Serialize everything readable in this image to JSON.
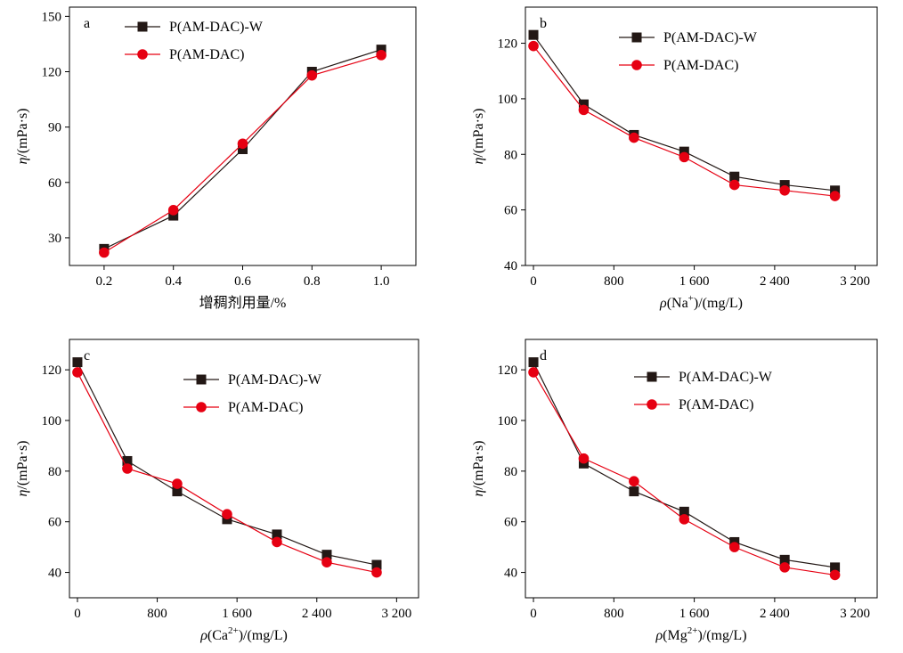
{
  "chart_data": [
    {
      "type": "line",
      "panel_label": "a",
      "xlabel": "增稠剂用量/%",
      "ylabel_symbol": "η",
      "ylabel_unit": "/(mPa·s)",
      "x": [
        0.2,
        0.4,
        0.6,
        0.8,
        1.0
      ],
      "xlim": [
        0.1,
        1.1
      ],
      "ylim": [
        15,
        155
      ],
      "xticks": [
        0.2,
        0.4,
        0.6,
        0.8,
        1.0
      ],
      "xtick_labels": [
        "0.2",
        "0.4",
        "0.6",
        "0.8",
        "1.0"
      ],
      "yticks": [
        30,
        60,
        90,
        120,
        150
      ],
      "ytick_labels": [
        "30",
        "60",
        "90",
        "120",
        "150"
      ],
      "legend_position": "top-left",
      "series": [
        {
          "name": "P(AM-DAC)-W",
          "marker": "square",
          "color": "#231815",
          "values": [
            24,
            42,
            78,
            120,
            132
          ]
        },
        {
          "name": "P(AM-DAC)",
          "marker": "circle",
          "color": "#e60012",
          "values": [
            22,
            45,
            81,
            118,
            129
          ]
        }
      ]
    },
    {
      "type": "line",
      "panel_label": "b",
      "xlabel": "ρ(Na⁺)/(mg/L)",
      "xlabel_parts": [
        "ρ",
        "(Na",
        "+",
        ")/(mg/L)"
      ],
      "ylabel_symbol": "η",
      "ylabel_unit": "/(mPa·s)",
      "x": [
        0,
        500,
        1000,
        1500,
        2000,
        2500,
        3000
      ],
      "xlim": [
        -80,
        3420
      ],
      "ylim": [
        40,
        133
      ],
      "xticks": [
        0,
        800,
        1600,
        2400,
        3200
      ],
      "xtick_labels": [
        "0",
        "800",
        "1 600",
        "2 400",
        "3 200"
      ],
      "yticks": [
        40,
        60,
        80,
        100,
        120
      ],
      "ytick_labels": [
        "40",
        "60",
        "80",
        "100",
        "120"
      ],
      "legend_position": "top-center",
      "series": [
        {
          "name": "P(AM-DAC)-W",
          "marker": "square",
          "color": "#231815",
          "values": [
            123,
            98,
            87,
            81,
            72,
            69,
            67
          ]
        },
        {
          "name": "P(AM-DAC)",
          "marker": "circle",
          "color": "#e60012",
          "values": [
            119,
            96,
            86,
            79,
            69,
            67,
            65
          ]
        }
      ]
    },
    {
      "type": "line",
      "panel_label": "c",
      "xlabel": "ρ(Ca²⁺)/(mg/L)",
      "xlabel_parts": [
        "ρ",
        "(Ca",
        "2+",
        ")/(mg/L)"
      ],
      "ylabel_symbol": "η",
      "ylabel_unit": "/(mPa·s)",
      "x": [
        0,
        500,
        1000,
        1500,
        2000,
        2500,
        3000
      ],
      "xlim": [
        -80,
        3420
      ],
      "ylim": [
        30,
        132
      ],
      "xticks": [
        0,
        800,
        1600,
        2400,
        3200
      ],
      "xtick_labels": [
        "0",
        "800",
        "1 600",
        "2 400",
        "3 200"
      ],
      "yticks": [
        40,
        60,
        80,
        100,
        120
      ],
      "ytick_labels": [
        "40",
        "60",
        "80",
        "100",
        "120"
      ],
      "legend_position": "top-center",
      "series": [
        {
          "name": "P(AM-DAC)-W",
          "marker": "square",
          "color": "#231815",
          "values": [
            123,
            84,
            72,
            61,
            55,
            47,
            43
          ]
        },
        {
          "name": "P(AM-DAC)",
          "marker": "circle",
          "color": "#e60012",
          "values": [
            119,
            81,
            75,
            63,
            52,
            44,
            40
          ]
        }
      ]
    },
    {
      "type": "line",
      "panel_label": "d",
      "xlabel": "ρ(Mg²⁺)/(mg/L)",
      "xlabel_parts": [
        "ρ",
        "(Mg",
        "2+",
        ")/(mg/L)"
      ],
      "ylabel_symbol": "η",
      "ylabel_unit": "/(mPa·s)",
      "x": [
        0,
        500,
        1000,
        1500,
        2000,
        2500,
        3000
      ],
      "xlim": [
        -80,
        3420
      ],
      "ylim": [
        30,
        132
      ],
      "xticks": [
        0,
        800,
        1600,
        2400,
        3200
      ],
      "xtick_labels": [
        "0",
        "800",
        "1 600",
        "2 400",
        "3 200"
      ],
      "yticks": [
        40,
        60,
        80,
        100,
        120
      ],
      "ytick_labels": [
        "40",
        "60",
        "80",
        "100",
        "120"
      ],
      "legend_position": "top-center",
      "series": [
        {
          "name": "P(AM-DAC)-W",
          "marker": "square",
          "color": "#231815",
          "values": [
            123,
            83,
            72,
            64,
            52,
            45,
            42
          ]
        },
        {
          "name": "P(AM-DAC)",
          "marker": "circle",
          "color": "#e60012",
          "values": [
            119,
            85,
            76,
            61,
            50,
            42,
            39
          ]
        }
      ]
    }
  ]
}
